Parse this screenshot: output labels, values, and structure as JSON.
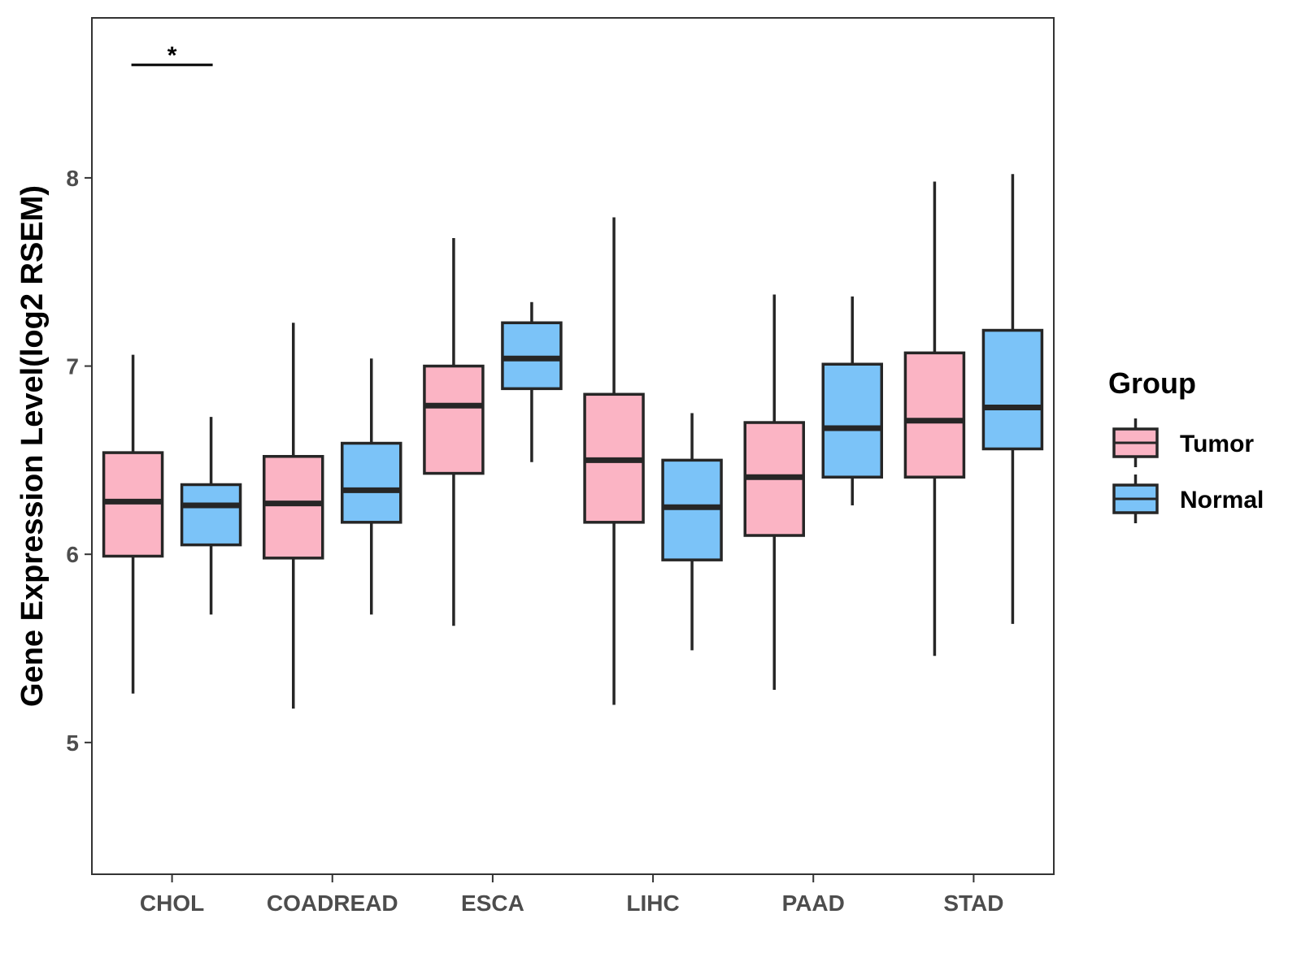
{
  "chart_data": {
    "type": "boxplot",
    "ylabel": "Gene Expression Level(log2 RSEM)",
    "ylim": [
      4.3,
      8.85
    ],
    "yticks": [
      5,
      6,
      7,
      8
    ],
    "categories": [
      "CHOL",
      "COADREAD",
      "ESCA",
      "LIHC",
      "PAAD",
      "STAD"
    ],
    "legend": {
      "title": "Group",
      "position": "right"
    },
    "grid": false,
    "series": [
      {
        "name": "Tumor",
        "color": "#FBB4C4",
        "boxes": [
          {
            "min": 5.26,
            "q1": 5.99,
            "median": 6.28,
            "q3": 6.54,
            "max": 7.06
          },
          {
            "min": 5.18,
            "q1": 5.98,
            "median": 6.27,
            "q3": 6.52,
            "max": 7.23
          },
          {
            "min": 5.62,
            "q1": 6.43,
            "median": 6.79,
            "q3": 7.0,
            "max": 7.68
          },
          {
            "min": 5.2,
            "q1": 6.17,
            "median": 6.5,
            "q3": 6.85,
            "max": 7.79
          },
          {
            "min": 5.28,
            "q1": 6.1,
            "median": 6.41,
            "q3": 6.7,
            "max": 7.38
          },
          {
            "min": 5.46,
            "q1": 6.41,
            "median": 6.71,
            "q3": 7.07,
            "max": 7.98
          }
        ]
      },
      {
        "name": "Normal",
        "color": "#7BC3F8",
        "boxes": [
          {
            "min": 5.68,
            "q1": 6.05,
            "median": 6.26,
            "q3": 6.37,
            "max": 6.73
          },
          {
            "min": 5.68,
            "q1": 6.17,
            "median": 6.34,
            "q3": 6.59,
            "max": 7.04
          },
          {
            "min": 6.49,
            "q1": 6.88,
            "median": 7.04,
            "q3": 7.23,
            "max": 7.34
          },
          {
            "min": 5.49,
            "q1": 5.97,
            "median": 6.25,
            "q3": 6.5,
            "max": 6.75
          },
          {
            "min": 6.26,
            "q1": 6.41,
            "median": 6.67,
            "q3": 7.01,
            "max": 7.37
          },
          {
            "min": 5.63,
            "q1": 6.56,
            "median": 6.78,
            "q3": 7.19,
            "max": 8.02
          }
        ]
      }
    ],
    "annotations": [
      {
        "category": "CHOL",
        "text": "*",
        "y": 8.6
      }
    ]
  }
}
